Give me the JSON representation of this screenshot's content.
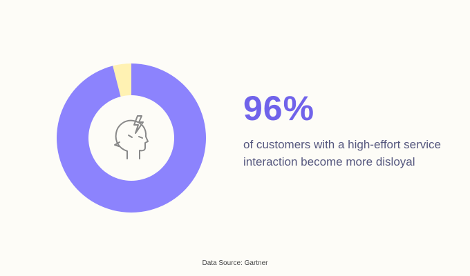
{
  "chart_data": {
    "type": "donut",
    "values": [
      96,
      4
    ],
    "colors": [
      "#8c83fd",
      "#fff2b3"
    ],
    "stat": "96%",
    "caption": "of customers with a high-effort service interaction become more disloyal",
    "source": "Data Source: Gartner"
  }
}
